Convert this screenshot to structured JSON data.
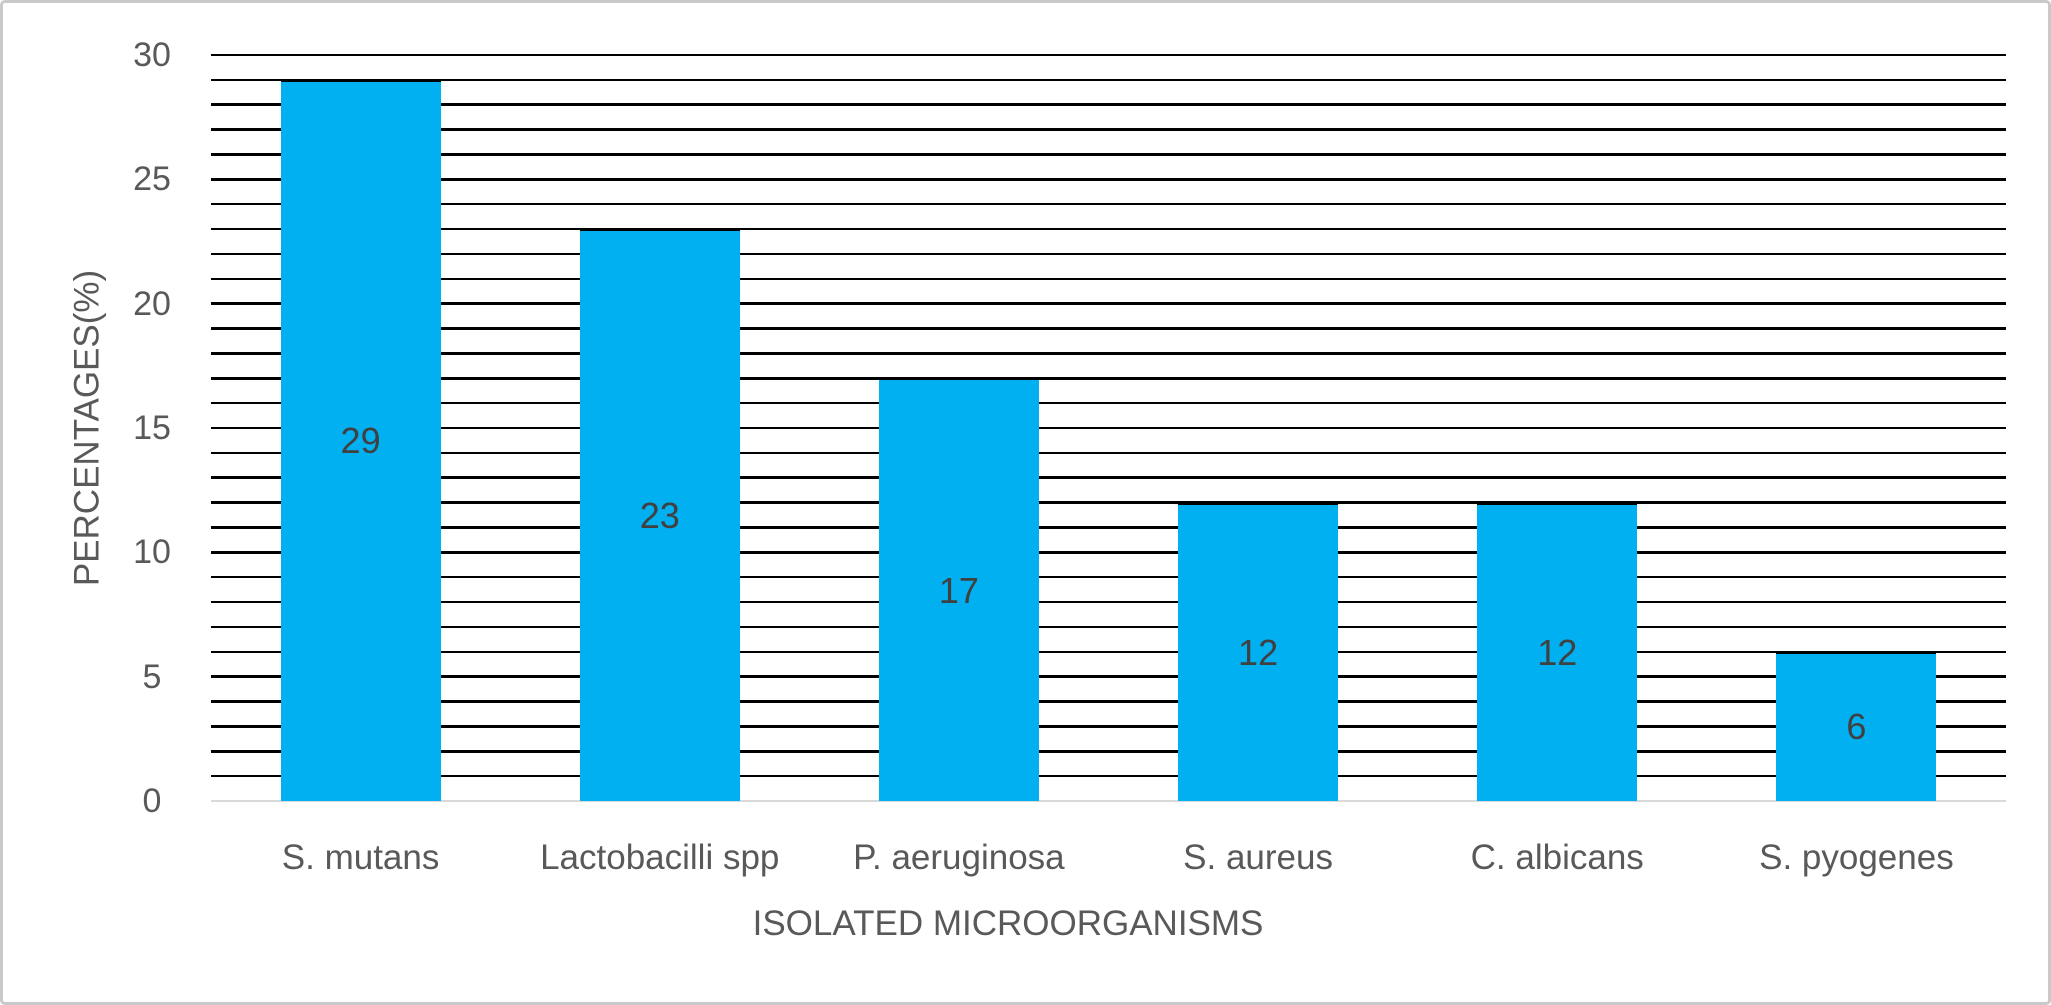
{
  "chart_data": {
    "type": "bar",
    "categories": [
      "S. mutans",
      "Lactobacilli spp",
      "P. aeruginosa",
      "S. aureus",
      "C. albicans",
      "S. pyogenes"
    ],
    "values": [
      29,
      23,
      17,
      12,
      12,
      6
    ],
    "data_labels": [
      "29",
      "23",
      "17",
      "12",
      "12",
      "6"
    ],
    "xlabel": "ISOLATED MICROORGANISMS",
    "ylabel": "PERCENTAGES(%)",
    "ylim": [
      0,
      30
    ],
    "y_ticks": [
      0,
      5,
      10,
      15,
      20,
      25,
      30
    ],
    "gridline_interval": 1,
    "grid": "horizontal gridlines every 1 unit, black",
    "legend": "none",
    "data_label_position": "center of bar",
    "colors": {
      "bar_fill": "#00b0f0",
      "bar_top_edge": "#000000",
      "gridline": "#000000",
      "axis_baseline": "#d9d9d9",
      "tick_label": "#595959",
      "category_label": "#595959",
      "axis_title": "#595959",
      "data_label": "#404040",
      "frame_border": "#c9c9c9",
      "background": "#ffffff"
    }
  }
}
